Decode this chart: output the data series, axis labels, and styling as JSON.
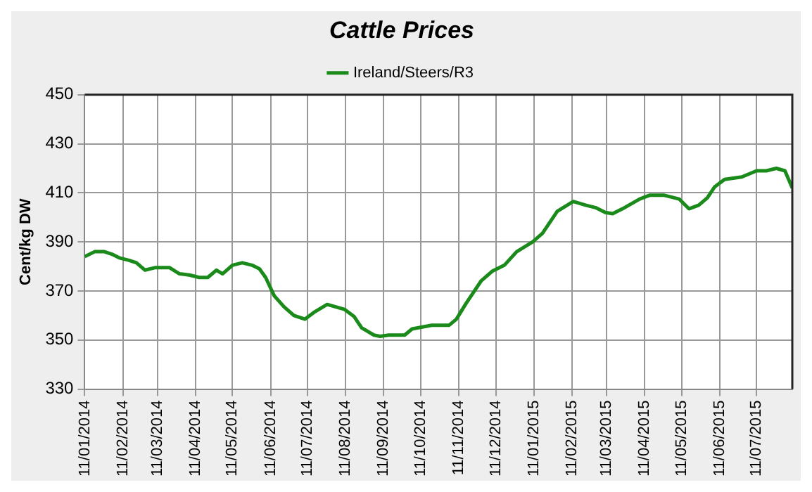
{
  "chart_data": {
    "type": "line",
    "title": "Cattle Prices",
    "ylabel": "Cent/kg DW",
    "x": [
      "2014-01-11",
      "2014-01-19",
      "2014-01-27",
      "2014-02-02",
      "2014-02-08",
      "2014-02-16",
      "2014-02-22",
      "2014-03-01",
      "2014-03-09",
      "2014-03-21",
      "2014-03-29",
      "2014-04-06",
      "2014-04-14",
      "2014-04-21",
      "2014-04-28",
      "2014-05-03",
      "2014-05-11",
      "2014-05-19",
      "2014-05-27",
      "2014-06-02",
      "2014-06-07",
      "2014-06-14",
      "2014-06-22",
      "2014-06-30",
      "2014-07-09",
      "2014-07-17",
      "2014-07-27",
      "2014-08-10",
      "2014-08-18",
      "2014-08-24",
      "2014-09-03",
      "2014-09-08",
      "2014-09-15",
      "2014-09-28",
      "2014-10-04",
      "2014-10-20",
      "2014-11-03",
      "2014-11-09",
      "2014-11-17",
      "2014-11-29",
      "2014-12-08",
      "2014-12-18",
      "2014-12-28",
      "2015-01-10",
      "2015-01-18",
      "2015-01-30",
      "2015-02-12",
      "2015-02-22",
      "2015-03-02",
      "2015-03-10",
      "2015-03-16",
      "2015-03-24",
      "2015-04-07",
      "2015-04-15",
      "2015-04-27",
      "2015-05-09",
      "2015-05-17",
      "2015-05-25",
      "2015-06-01",
      "2015-06-07",
      "2015-06-15",
      "2015-06-29",
      "2015-07-11",
      "2015-07-19",
      "2015-07-27",
      "2015-08-03",
      "2015-08-09"
    ],
    "series": [
      {
        "name": "Ireland/Steers/R3",
        "color": "#1a8a1a",
        "values": [
          384,
          386,
          386,
          385,
          383.5,
          382.5,
          381.5,
          378.5,
          379.5,
          379.5,
          377,
          376.5,
          375.5,
          375.5,
          378.5,
          377,
          380.5,
          381.5,
          380.5,
          379,
          375.5,
          368,
          363.5,
          360,
          358.5,
          361.5,
          364.5,
          362.5,
          359.5,
          355,
          352,
          351.5,
          352,
          352,
          354.5,
          356,
          356,
          358.5,
          365,
          374,
          378,
          380.5,
          386,
          390,
          393.5,
          402.5,
          406.5,
          405,
          404,
          402,
          401.5,
          403.5,
          407.5,
          409,
          409,
          407.5,
          403.5,
          405,
          408,
          412.5,
          415.5,
          416.5,
          419,
          419,
          420,
          419,
          412
        ]
      }
    ],
    "xlim": [
      "2014-01-11",
      "2015-08-09"
    ],
    "xticks": [
      {
        "value": "2014-01-11",
        "label": "11/01/2014"
      },
      {
        "value": "2014-02-11",
        "label": "11/02/2014"
      },
      {
        "value": "2014-03-11",
        "label": "11/03/2014"
      },
      {
        "value": "2014-04-11",
        "label": "11/04/2014"
      },
      {
        "value": "2014-05-11",
        "label": "11/05/2014"
      },
      {
        "value": "2014-06-11",
        "label": "11/06/2014"
      },
      {
        "value": "2014-07-11",
        "label": "11/07/2014"
      },
      {
        "value": "2014-08-11",
        "label": "11/08/2014"
      },
      {
        "value": "2014-09-11",
        "label": "11/09/2014"
      },
      {
        "value": "2014-10-11",
        "label": "11/10/2014"
      },
      {
        "value": "2014-11-11",
        "label": "11/11/2014"
      },
      {
        "value": "2014-12-11",
        "label": "11/12/2014"
      },
      {
        "value": "2015-01-11",
        "label": "11/01/2015"
      },
      {
        "value": "2015-02-11",
        "label": "11/02/2015"
      },
      {
        "value": "2015-03-11",
        "label": "11/03/2015"
      },
      {
        "value": "2015-04-11",
        "label": "11/04/2015"
      },
      {
        "value": "2015-05-11",
        "label": "11/05/2015"
      },
      {
        "value": "2015-06-11",
        "label": "11/06/2015"
      },
      {
        "value": "2015-07-11",
        "label": "11/07/2015"
      }
    ],
    "ylim": [
      330,
      450
    ],
    "yticks": [
      330,
      350,
      370,
      390,
      410,
      430,
      450
    ],
    "grid": true,
    "legend": "top",
    "marker": "none",
    "line_style": "solid"
  }
}
